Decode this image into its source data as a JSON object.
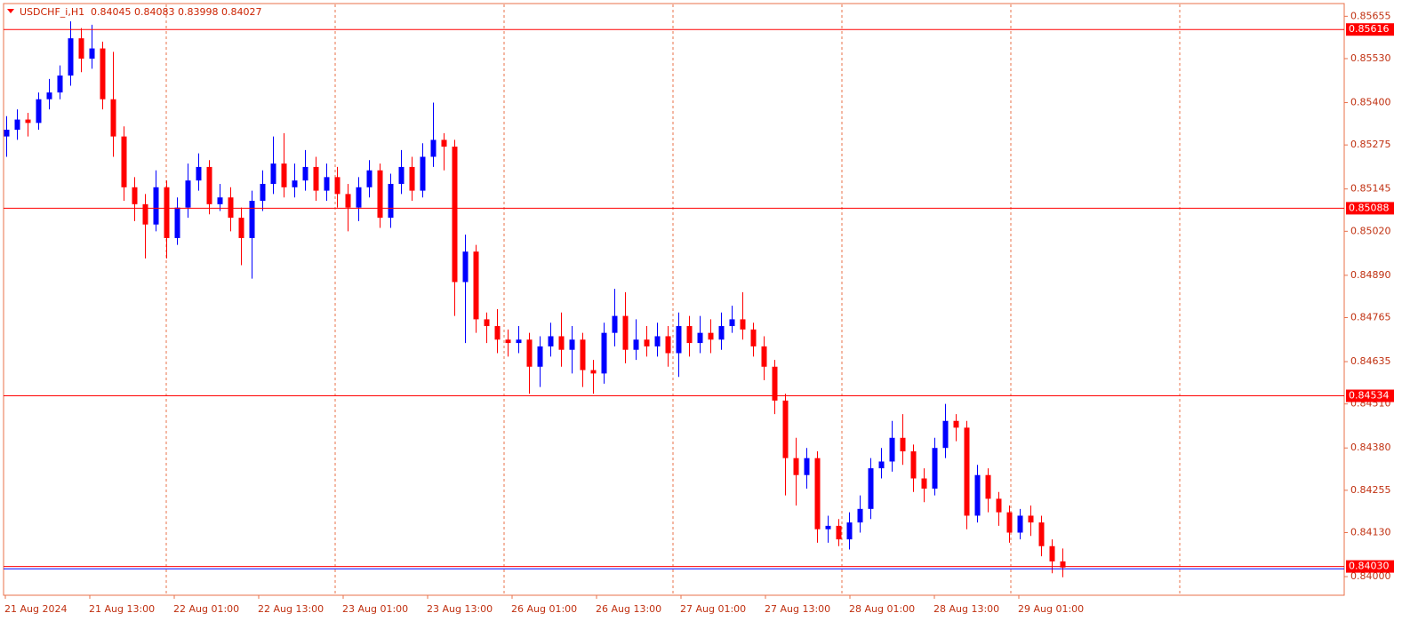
{
  "chart_data": {
    "type": "candlestick",
    "title": "USDCHF_i,H1",
    "quote": "0.84045 0.84083 0.83998 0.84027",
    "xlabels": [
      "21 Aug 2024",
      "21 Aug 13:00",
      "22 Aug 01:00",
      "22 Aug 13:00",
      "23 Aug 01:00",
      "23 Aug 13:00",
      "26 Aug 01:00",
      "26 Aug 13:00",
      "27 Aug 01:00",
      "27 Aug 13:00",
      "28 Aug 01:00",
      "28 Aug 13:00",
      "29 Aug 01:00"
    ],
    "ylim": [
      0.83945,
      0.8569
    ],
    "yticks": [
      0.85655,
      {
        "value": 0.8553,
        "label": "0.85530"
      },
      {
        "value": 0.854,
        "label": "0.85400"
      },
      0.85275,
      0.85145,
      {
        "value": 0.8502,
        "label": "0.85020"
      },
      {
        "value": 0.8489,
        "label": "0.84890"
      },
      0.84765,
      0.84635,
      {
        "value": 0.8451,
        "label": "0.84510"
      },
      {
        "value": 0.8438,
        "label": "0.84380"
      },
      0.84255,
      {
        "value": 0.8413,
        "label": "0.84130"
      },
      {
        "value": 0.84,
        "label": "0.84000"
      }
    ],
    "levels": [
      0.85616,
      0.85088,
      0.84534,
      {
        "value": 0.8403,
        "label": "0.84030"
      }
    ],
    "level_color": "#ff0000",
    "last_line_color": "#0000ff",
    "up_color": "#0000ff",
    "down_color": "#ff0000",
    "open": [
      0.853,
      0.8532,
      0.8535,
      0.8534,
      0.8541,
      0.8543,
      0.8548,
      0.8559,
      0.8553,
      0.8556,
      0.8541,
      0.853,
      0.8515,
      0.851,
      0.8504,
      0.8515,
      0.85,
      0.8509,
      0.8517,
      0.8521,
      0.851,
      0.8512,
      0.8506,
      0.85,
      0.8511,
      0.8516,
      0.8522,
      0.8515,
      0.8517,
      0.8521,
      0.8514,
      0.8518,
      0.8513,
      0.8509,
      0.8515,
      0.852,
      0.8506,
      0.8516,
      0.8521,
      0.8514,
      0.8524,
      0.8529,
      0.8527,
      0.8487,
      0.8496,
      0.8476,
      0.8474,
      0.847,
      0.8469,
      0.847,
      0.8462,
      0.8468,
      0.8471,
      0.8467,
      0.847,
      0.8461,
      0.846,
      0.8472,
      0.8477,
      0.8467,
      0.847,
      0.8468,
      0.8471,
      0.8466,
      0.8474,
      0.8469,
      0.8472,
      0.847,
      0.8474,
      0.8476,
      0.8473,
      0.8468,
      0.8462,
      0.8452,
      0.8435,
      0.843,
      0.8435,
      0.8414,
      0.8415,
      0.8411,
      0.8416,
      0.842,
      0.8432,
      0.8434,
      0.8441,
      0.8437,
      0.8429,
      0.8426,
      0.8438,
      0.8446,
      0.8444,
      0.8418,
      0.843,
      0.8423,
      0.8419,
      0.8413,
      0.8418,
      0.8416,
      0.8409,
      0.84045
    ],
    "high": [
      0.8536,
      0.8538,
      0.8537,
      0.8543,
      0.8547,
      0.8551,
      0.8564,
      0.8562,
      0.8563,
      0.8558,
      0.8555,
      0.8533,
      0.8518,
      0.8513,
      0.852,
      0.8517,
      0.8512,
      0.8522,
      0.8525,
      0.8523,
      0.8516,
      0.8515,
      0.8509,
      0.8514,
      0.852,
      0.853,
      0.8531,
      0.8522,
      0.8526,
      0.8524,
      0.8522,
      0.8521,
      0.8516,
      0.8518,
      0.8523,
      0.8522,
      0.8519,
      0.8526,
      0.8524,
      0.8528,
      0.854,
      0.8531,
      0.8529,
      0.8501,
      0.8498,
      0.8478,
      0.8479,
      0.8473,
      0.8474,
      0.8472,
      0.8471,
      0.8475,
      0.8478,
      0.8474,
      0.8472,
      0.8464,
      0.8475,
      0.8485,
      0.8484,
      0.8476,
      0.8474,
      0.8475,
      0.8474,
      0.8478,
      0.8477,
      0.8477,
      0.8476,
      0.8478,
      0.848,
      0.8484,
      0.8475,
      0.8471,
      0.8464,
      0.8454,
      0.8441,
      0.8438,
      0.8437,
      0.8418,
      0.8417,
      0.8419,
      0.8424,
      0.8435,
      0.8438,
      0.8446,
      0.8448,
      0.8439,
      0.8432,
      0.8441,
      0.8451,
      0.8448,
      0.8446,
      0.8433,
      0.8432,
      0.8425,
      0.8421,
      0.842,
      0.8421,
      0.8418,
      0.8411,
      0.84083
    ],
    "low": [
      0.8524,
      0.8529,
      0.853,
      0.8532,
      0.8538,
      0.8541,
      0.8545,
      0.8549,
      0.855,
      0.8538,
      0.8524,
      0.8511,
      0.8505,
      0.8494,
      0.8502,
      0.8494,
      0.8498,
      0.8506,
      0.8514,
      0.8507,
      0.8508,
      0.8502,
      0.8492,
      0.8488,
      0.8508,
      0.8513,
      0.8512,
      0.8512,
      0.8514,
      0.8511,
      0.8511,
      0.8509,
      0.8502,
      0.8505,
      0.8512,
      0.8503,
      0.8503,
      0.8513,
      0.8511,
      0.8512,
      0.8521,
      0.852,
      0.8477,
      0.8469,
      0.8472,
      0.8469,
      0.8466,
      0.8465,
      0.8466,
      0.8454,
      0.8456,
      0.8465,
      0.8462,
      0.846,
      0.8456,
      0.8454,
      0.8457,
      0.8468,
      0.8463,
      0.8464,
      0.8465,
      0.8465,
      0.8462,
      0.8459,
      0.8465,
      0.8466,
      0.8466,
      0.8467,
      0.8472,
      0.847,
      0.8465,
      0.8458,
      0.8448,
      0.8424,
      0.8421,
      0.8426,
      0.841,
      0.841,
      0.8409,
      0.8408,
      0.8413,
      0.8417,
      0.8429,
      0.8431,
      0.8433,
      0.8425,
      0.8422,
      0.8424,
      0.8435,
      0.844,
      0.8414,
      0.8416,
      0.8419,
      0.8415,
      0.841,
      0.8411,
      0.8412,
      0.8406,
      0.8401,
      0.83998
    ],
    "close": [
      0.8532,
      0.8535,
      0.8534,
      0.8541,
      0.8543,
      0.8548,
      0.8559,
      0.8553,
      0.8556,
      0.8541,
      0.853,
      0.8515,
      0.851,
      0.8504,
      0.8515,
      0.85,
      0.8509,
      0.8517,
      0.8521,
      0.851,
      0.8512,
      0.8506,
      0.85,
      0.8511,
      0.8516,
      0.8522,
      0.8515,
      0.8517,
      0.8521,
      0.8514,
      0.8518,
      0.8513,
      0.8509,
      0.8515,
      0.852,
      0.8506,
      0.8516,
      0.8521,
      0.8514,
      0.8524,
      0.8529,
      0.8527,
      0.8487,
      0.8496,
      0.8476,
      0.8474,
      0.847,
      0.8469,
      0.847,
      0.8462,
      0.8468,
      0.8471,
      0.8467,
      0.847,
      0.8461,
      0.846,
      0.8472,
      0.8477,
      0.8467,
      0.847,
      0.8468,
      0.8471,
      0.8466,
      0.8474,
      0.8469,
      0.8472,
      0.847,
      0.8474,
      0.8476,
      0.8473,
      0.8468,
      0.8462,
      0.8452,
      0.8435,
      0.843,
      0.8435,
      0.8414,
      0.8415,
      0.8411,
      0.8416,
      0.842,
      0.8432,
      0.8434,
      0.8441,
      0.8437,
      0.8429,
      0.8426,
      0.8438,
      0.8446,
      0.8444,
      0.8418,
      0.843,
      0.8423,
      0.8419,
      0.8413,
      0.8418,
      0.8416,
      0.8409,
      0.84045,
      0.84027
    ]
  }
}
